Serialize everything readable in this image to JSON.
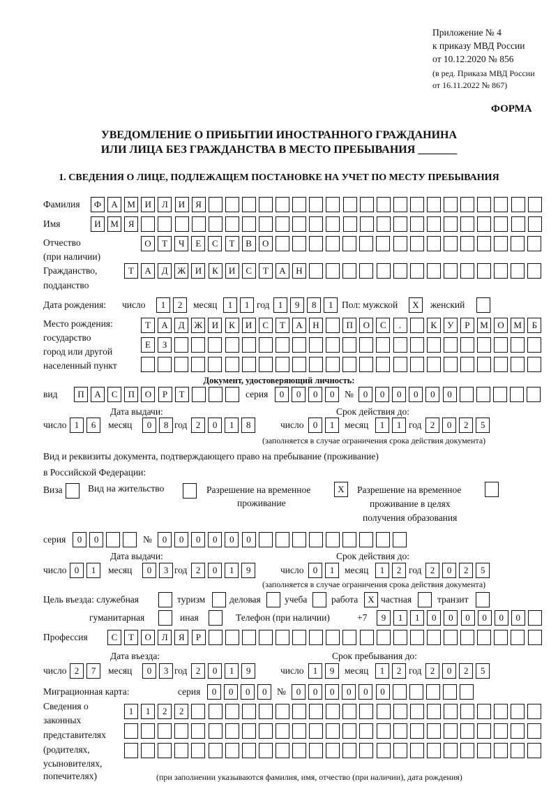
{
  "header": {
    "appendix": "Приложение № 4",
    "order": "к приказу МВД России",
    "order_date": "от 10.12.2020 № 856",
    "revision1": "(в ред. Приказа МВД России",
    "revision2": "от 16.11.2022 № 867)",
    "form_label": "ФОРМА",
    "title1": "УВЕДОМЛЕНИЕ О ПРИБЫТИИ ИНОСТРАННОГО ГРАЖДАНИНА",
    "title2": "ИЛИ ЛИЦА БЕЗ ГРАЖДАНСТВА В МЕСТО ПРЕБЫВАНИЯ _______",
    "section1": "1. СВЕДЕНИЯ О ЛИЦЕ, ПОДЛЕЖАЩЕМ ПОСТАНОВКЕ НА УЧЕТ ПО МЕСТУ ПРЕБЫВАНИЯ"
  },
  "labels": {
    "surname": "Фамилия",
    "name": "Имя",
    "patronymic1": "Отчество",
    "patronymic2": "(при наличии)",
    "citizenship1": "Гражданство,",
    "citizenship2": "подданство",
    "birth_date": "Дата рождения:",
    "day": "число",
    "month": "месяц",
    "year": "год",
    "sex_male": "Пол: мужской",
    "sex_female": "женский",
    "birth_place1": "Место рождения:",
    "birth_place2": "государство",
    "birth_place3": "город или другой",
    "birth_place4": "населенный пункт",
    "id_doc": "Документ, удостоверяющий личность:",
    "kind": "вид",
    "series": "серия",
    "number": "№",
    "issue_date": "Дата выдачи:",
    "valid_until": "Срок действия до:",
    "valid_note": "(заполняется в случае ограничения срока действия документа)",
    "stay_doc1": "Вид и реквизиты документа, подтверждающего право на пребывание (проживание)",
    "stay_doc2": "в Российской Федерации:",
    "visa": "Виза",
    "residence": "Вид на жительство",
    "temp_permit1": "Разрешение на временное",
    "temp_permit2": "проживание",
    "edu_permit1": "Разрешение на временное",
    "edu_permit2": "проживание в целях",
    "edu_permit3": "получения образования",
    "purpose": "Цель въезда: служебная",
    "tourism": "туризм",
    "business": "деловая",
    "study": "учеба",
    "work": "работа",
    "private": "частная",
    "transit": "транзит",
    "humanitarian": "гуманитарная",
    "other": "иная",
    "phone": "Телефон (при наличии)",
    "phone_prefix": "+7",
    "profession": "Профессия",
    "entry_date": "Дата въезда:",
    "stay_until": "Срок пребывания до:",
    "migration_card": "Миграционная карта:",
    "reps1": "Сведения о",
    "reps2": "законных",
    "reps3": "представителях",
    "reps4": "(родителях,",
    "reps5": "усыновителях,",
    "reps6": "попечителях)",
    "reps_note": "(при заполнении указываются фамилия, имя, отчество (при наличии), дата рождения)"
  },
  "person": {
    "surname": "ФАМИЛИЯ",
    "name": "ИМЯ",
    "patronymic": "ОТЧЕСТВО",
    "citizenship": "ТАДЖИКИСТАН",
    "birth_day": "12",
    "birth_month": "11",
    "birth_year": "1981",
    "sex_male": "X",
    "sex_female": "",
    "birth_place_row1": "ТАДЖИКИСТАН ПОС. КУРМОМБ",
    "birth_place_row2": "ЕЗ",
    "birth_place_row3": ""
  },
  "id_document": {
    "kind": "ПАСПОРТ",
    "series": "0000",
    "number": "000000",
    "issue_day": "16",
    "issue_month": "08",
    "issue_year": "2018",
    "valid_day": "01",
    "valid_month": "11",
    "valid_year": "2025"
  },
  "stay_document": {
    "visa": "",
    "residence": "",
    "temp_permit": "X",
    "edu_permit": "",
    "series": "00",
    "number": "000000",
    "issue_day": "01",
    "issue_month": "03",
    "issue_year": "2019",
    "valid_day": "01",
    "valid_month": "12",
    "valid_year": "2025"
  },
  "purpose": {
    "official": "",
    "tourism": "",
    "business": "",
    "study": "",
    "work": "X",
    "private": "",
    "transit": "",
    "humanitarian": "",
    "other": ""
  },
  "phone": "911000000",
  "profession": "СТОЛЯР",
  "entry": {
    "entry_day": "27",
    "entry_month": "03",
    "entry_year": "2019",
    "until_day": "19",
    "until_month": "12",
    "until_year": "2025"
  },
  "migration_card": {
    "series": "0000",
    "number": "000000"
  },
  "representatives": {
    "row1": "1122",
    "row2": "",
    "row3": ""
  }
}
